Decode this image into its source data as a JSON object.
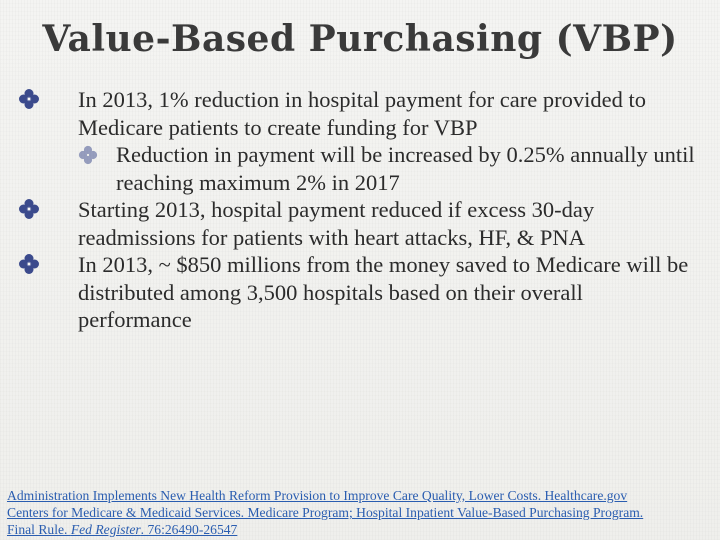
{
  "slide": {
    "title": "Value-Based Purchasing (VBP)",
    "bullets": [
      {
        "text": "In 2013, 1% reduction in hospital payment for care provided to Medicare patients to create funding for VBP",
        "sub": [
          {
            "text": "Reduction in payment will be increased by 0.25% annually until reaching maximum 2% in 2017"
          }
        ]
      },
      {
        "text": "Starting 2013, hospital payment reduced if excess 30-day readmissions for patients with heart attacks, HF, & PNA"
      },
      {
        "text": "In 2013, ~ $850 millions from the money saved  to Medicare will be distributed among  3,500 hospitals based on their overall performance"
      }
    ],
    "bullet_icon": "diamond-clover-bullet-icon",
    "bullet_color": "#3b4a8c"
  },
  "references": {
    "line1": "Administration Implements New Health Reform Provision to Improve Care Quality, Lower Costs. Healthcare.gov",
    "line2": "Centers for Medicare & Medicaid Services. Medicare Program; Hospital Inpatient Value-Based Purchasing Program.",
    "line3_prefix": "Final Rule. ",
    "line3_journal": "Fed Register",
    "line3_suffix": ". 76:26490-26547",
    "link_color": "#2a5db0"
  }
}
